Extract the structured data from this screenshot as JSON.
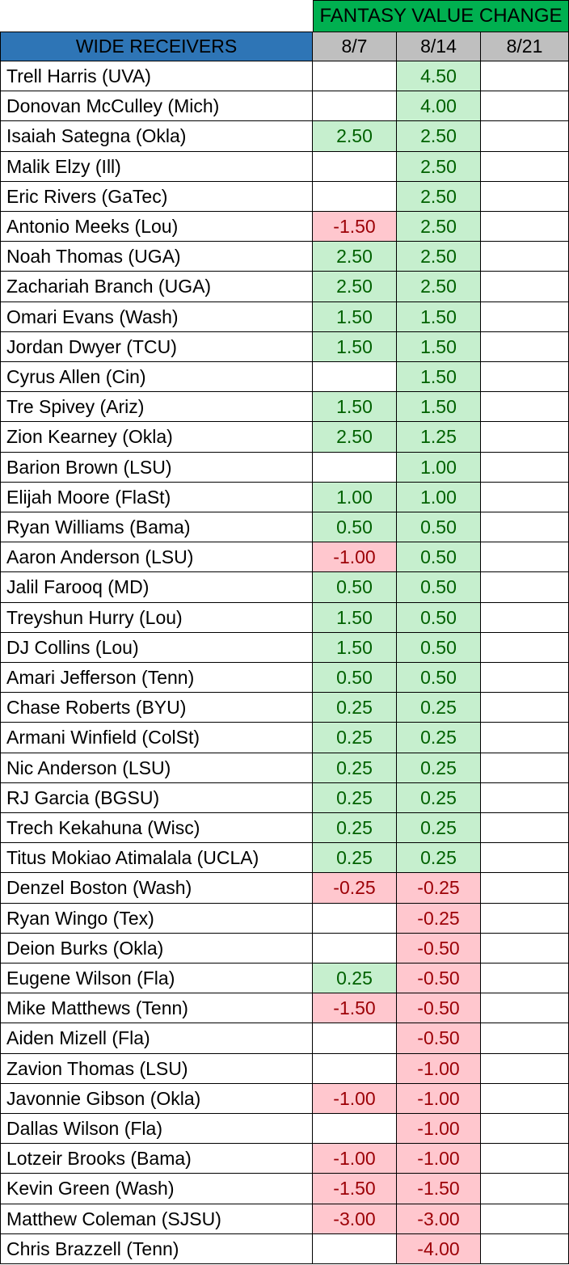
{
  "header": {
    "group_title": "FANTASY VALUE CHANGE",
    "position_label": "WIDE RECEIVERS",
    "dates": [
      "8/7",
      "8/14",
      "8/21"
    ]
  },
  "colors": {
    "group_header_bg": "#00b050",
    "position_header_bg": "#2e75b6",
    "date_header_bg": "#bfbfbf",
    "positive_fill": "#c6efce",
    "positive_text": "#006100",
    "negative_fill": "#ffc7ce",
    "negative_text": "#9c0006"
  },
  "rows": [
    {
      "name": "Trell Harris (UVA)",
      "v1": "",
      "v2": "4.50",
      "v3": ""
    },
    {
      "name": "Donovan McCulley (Mich)",
      "v1": "",
      "v2": "4.00",
      "v3": ""
    },
    {
      "name": "Isaiah Sategna (Okla)",
      "v1": "2.50",
      "v2": "2.50",
      "v3": ""
    },
    {
      "name": "Malik Elzy (Ill)",
      "v1": "",
      "v2": "2.50",
      "v3": ""
    },
    {
      "name": "Eric Rivers (GaTec)",
      "v1": "",
      "v2": "2.50",
      "v3": ""
    },
    {
      "name": "Antonio Meeks (Lou)",
      "v1": "-1.50",
      "v2": "2.50",
      "v3": ""
    },
    {
      "name": "Noah Thomas (UGA)",
      "v1": "2.50",
      "v2": "2.50",
      "v3": ""
    },
    {
      "name": "Zachariah Branch (UGA)",
      "v1": "2.50",
      "v2": "2.50",
      "v3": ""
    },
    {
      "name": "Omari Evans (Wash)",
      "v1": "1.50",
      "v2": "1.50",
      "v3": ""
    },
    {
      "name": "Jordan Dwyer (TCU)",
      "v1": "1.50",
      "v2": "1.50",
      "v3": ""
    },
    {
      "name": "Cyrus Allen (Cin)",
      "v1": "",
      "v2": "1.50",
      "v3": ""
    },
    {
      "name": "Tre Spivey (Ariz)",
      "v1": "1.50",
      "v2": "1.50",
      "v3": ""
    },
    {
      "name": "Zion Kearney (Okla)",
      "v1": "2.50",
      "v2": "1.25",
      "v3": ""
    },
    {
      "name": "Barion Brown (LSU)",
      "v1": "",
      "v2": "1.00",
      "v3": ""
    },
    {
      "name": "Elijah Moore (FlaSt)",
      "v1": "1.00",
      "v2": "1.00",
      "v3": ""
    },
    {
      "name": "Ryan Williams (Bama)",
      "v1": "0.50",
      "v2": "0.50",
      "v3": ""
    },
    {
      "name": "Aaron Anderson (LSU)",
      "v1": "-1.00",
      "v2": "0.50",
      "v3": ""
    },
    {
      "name": "Jalil Farooq (MD)",
      "v1": "0.50",
      "v2": "0.50",
      "v3": ""
    },
    {
      "name": "Treyshun Hurry (Lou)",
      "v1": "1.50",
      "v2": "0.50",
      "v3": ""
    },
    {
      "name": "DJ Collins (Lou)",
      "v1": "1.50",
      "v2": "0.50",
      "v3": ""
    },
    {
      "name": "Amari Jefferson (Tenn)",
      "v1": "0.50",
      "v2": "0.50",
      "v3": ""
    },
    {
      "name": "Chase Roberts (BYU)",
      "v1": "0.25",
      "v2": "0.25",
      "v3": ""
    },
    {
      "name": "Armani Winfield (ColSt)",
      "v1": "0.25",
      "v2": "0.25",
      "v3": ""
    },
    {
      "name": "Nic Anderson (LSU)",
      "v1": "0.25",
      "v2": "0.25",
      "v3": ""
    },
    {
      "name": "RJ Garcia (BGSU)",
      "v1": "0.25",
      "v2": "0.25",
      "v3": ""
    },
    {
      "name": "Trech Kekahuna (Wisc)",
      "v1": "0.25",
      "v2": "0.25",
      "v3": ""
    },
    {
      "name": "Titus Mokiao Atimalala (UCLA)",
      "v1": "0.25",
      "v2": "0.25",
      "v3": ""
    },
    {
      "name": "Denzel Boston (Wash)",
      "v1": "-0.25",
      "v2": "-0.25",
      "v3": ""
    },
    {
      "name": "Ryan Wingo (Tex)",
      "v1": "",
      "v2": "-0.25",
      "v3": ""
    },
    {
      "name": "Deion Burks (Okla)",
      "v1": "",
      "v2": "-0.50",
      "v3": ""
    },
    {
      "name": "Eugene Wilson (Fla)",
      "v1": "0.25",
      "v2": "-0.50",
      "v3": ""
    },
    {
      "name": "Mike Matthews (Tenn)",
      "v1": "-1.50",
      "v2": "-0.50",
      "v3": ""
    },
    {
      "name": "Aiden Mizell (Fla)",
      "v1": "",
      "v2": "-0.50",
      "v3": ""
    },
    {
      "name": "Zavion Thomas (LSU)",
      "v1": "",
      "v2": "-1.00",
      "v3": ""
    },
    {
      "name": "Javonnie Gibson (Okla)",
      "v1": "-1.00",
      "v2": "-1.00",
      "v3": ""
    },
    {
      "name": "Dallas Wilson (Fla)",
      "v1": "",
      "v2": "-1.00",
      "v3": ""
    },
    {
      "name": "Lotzeir Brooks (Bama)",
      "v1": "-1.00",
      "v2": "-1.00",
      "v3": ""
    },
    {
      "name": "Kevin Green (Wash)",
      "v1": "-1.50",
      "v2": "-1.50",
      "v3": ""
    },
    {
      "name": "Matthew Coleman (SJSU)",
      "v1": "-3.00",
      "v2": "-3.00",
      "v3": ""
    },
    {
      "name": "Chris Brazzell (Tenn)",
      "v1": "",
      "v2": "-4.00",
      "v3": ""
    }
  ]
}
